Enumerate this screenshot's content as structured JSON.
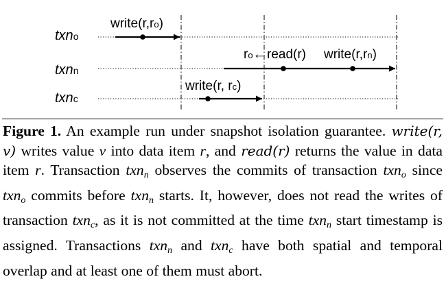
{
  "diagram": {
    "lanes": [
      {
        "name": "txn",
        "subscript": "o"
      },
      {
        "name": "txn",
        "subscript": "n"
      },
      {
        "name": "txn",
        "subscript": "c"
      }
    ],
    "ops": {
      "write_o": {
        "text": "write(r,r",
        "sub": "o",
        "close": ")"
      },
      "r_o_arrow": {
        "text": "r",
        "sub": "o",
        "arrow": "←"
      },
      "read": {
        "text": "read(r)"
      },
      "write_n": {
        "text": "write(r,r",
        "sub": "n",
        "close": ")"
      },
      "write_c": {
        "text": "write(r, r",
        "sub": "c",
        "close": ")"
      }
    }
  },
  "caption": {
    "label": "Figure 1.",
    "text_1": " An example run under snapshot isolation guarantee. ",
    "write_fn": "write(r, v)",
    "text_2": " writes value ",
    "v": "v",
    "text_3": " into data item ",
    "r1": "r",
    "text_4": ", and ",
    "read_fn": "read(r)",
    "text_5": " returns the value in data item ",
    "r2": "r",
    "text_6": ". Transaction ",
    "txn": "txn",
    "sub_n": "n",
    "sub_o": "o",
    "sub_c": "c",
    "text_7": " observes the commits of transaction ",
    "text_8": " since ",
    "text_9": " commits before ",
    "text_10": " starts. It, however, does not read the writes of transaction ",
    "text_11": ", as it is not committed at the time ",
    "text_12": " start timestamp is assigned. Transactions ",
    "text_13": " and ",
    "text_14": " have both spatial and temporal overlap and at least one of them must abort."
  }
}
